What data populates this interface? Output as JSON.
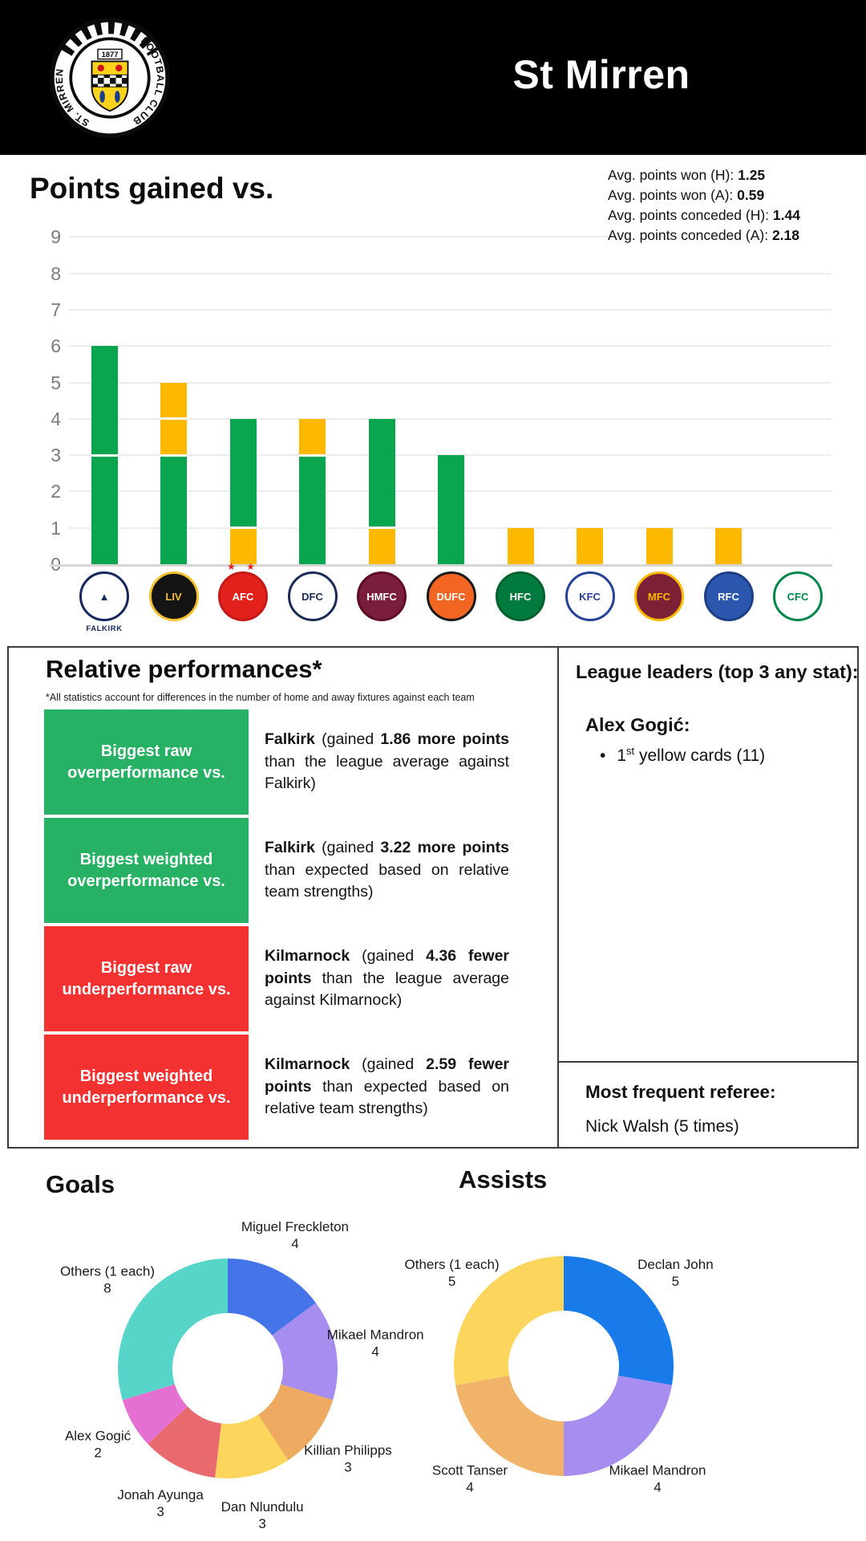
{
  "header": {
    "title": "St Mirren",
    "crest": {
      "year": "1877",
      "ring_text_left": "ST. MIRREN",
      "ring_text_right": "FOOTBALL CLUB"
    }
  },
  "points_section": {
    "title": "Points gained vs.",
    "avg_stats": [
      {
        "label": "Avg. points won (H): ",
        "value": "1.25"
      },
      {
        "label": "Avg. points won (A): ",
        "value": "0.59"
      },
      {
        "label": "Avg. points conceded (H): ",
        "value": "1.44"
      },
      {
        "label": "Avg. points conceded (A): ",
        "value": "2.18"
      }
    ]
  },
  "team_logos": [
    {
      "name": "Falkirk",
      "abbr": "▲",
      "bg": "#ffffff",
      "fg": "#15275c",
      "border": "#15275c",
      "caption": "FALKIRK"
    },
    {
      "name": "Livingston",
      "abbr": "LIV",
      "bg": "#141414",
      "fg": "#f2c230",
      "border": "#f2c230"
    },
    {
      "name": "Aberdeen",
      "abbr": "AFC",
      "bg": "#e2211c",
      "fg": "#ffffff",
      "border": "#c41a17",
      "stars": true
    },
    {
      "name": "Dundee",
      "abbr": "DFC",
      "bg": "#ffffff",
      "fg": "#1a2b57",
      "border": "#1a2b57"
    },
    {
      "name": "Hearts",
      "abbr": "HMFC",
      "bg": "#7b1e3d",
      "fg": "#ffffff",
      "border": "#5e0b23"
    },
    {
      "name": "Dundee United",
      "abbr": "DUFC",
      "bg": "#f26522",
      "fg": "#ffffff",
      "border": "#1a1a1a"
    },
    {
      "name": "Hibernian",
      "abbr": "HFC",
      "bg": "#007a3d",
      "fg": "#ffffff",
      "border": "#00612f"
    },
    {
      "name": "Kilmarnock",
      "abbr": "KFC",
      "bg": "#ffffff",
      "fg": "#27409a",
      "border": "#27409a"
    },
    {
      "name": "Motherwell",
      "abbr": "MFC",
      "bg": "#7c2035",
      "fg": "#fbba00",
      "border": "#fbba00"
    },
    {
      "name": "Rangers",
      "abbr": "RFC",
      "bg": "#2b57ae",
      "fg": "#ffffff",
      "border": "#1d3f87"
    },
    {
      "name": "Celtic",
      "abbr": "CFC",
      "bg": "#ffffff",
      "fg": "#018749",
      "border": "#018749"
    }
  ],
  "relative_performances": {
    "heading": "Relative performances*",
    "footnote": "*All statistics account for differences in the number of home and away fixtures against each team",
    "rows": [
      {
        "box_label": "Biggest raw overperformance vs.",
        "box_color": "#26b164",
        "desc_parts": [
          {
            "t": "Falkirk",
            "b": true
          },
          {
            "t": " (gained ",
            "b": false
          },
          {
            "t": "1.86 more points",
            "b": true
          },
          {
            "t": " than the league average against Falkirk)",
            "b": false
          }
        ]
      },
      {
        "box_label": "Biggest weighted overperformance vs.",
        "box_color": "#26b164",
        "desc_parts": [
          {
            "t": "Falkirk",
            "b": true
          },
          {
            "t": " (gained ",
            "b": false
          },
          {
            "t": "3.22 more points",
            "b": true
          },
          {
            "t": " than expected based on relative team strengths)",
            "b": false
          }
        ]
      },
      {
        "box_label": "Biggest raw underperformance vs.",
        "box_color": "#f23130",
        "desc_parts": [
          {
            "t": "Kilmarnock",
            "b": true
          },
          {
            "t": " (gained ",
            "b": false
          },
          {
            "t": "4.36 fewer points",
            "b": true
          },
          {
            "t": " than the league average against Kilmarnock)",
            "b": false
          }
        ]
      },
      {
        "box_label": "Biggest weighted underperformance vs.",
        "box_color": "#f23130",
        "desc_parts": [
          {
            "t": "Kilmarnock",
            "b": true
          },
          {
            "t": " (gained ",
            "b": false
          },
          {
            "t": "2.59 fewer points",
            "b": true
          },
          {
            "t": " than expected based on relative team strengths)",
            "b": false
          }
        ]
      }
    ]
  },
  "league_leaders": {
    "heading": "League leaders (top 3 any stat):",
    "player": "Alex Gogić:",
    "bullets": [
      {
        "bullet": "•",
        "num": "1",
        "sup": "st",
        "rest": " yellow cards (11)"
      }
    ]
  },
  "referee": {
    "heading": "Most frequent referee:",
    "value": "Nick Walsh (5 times)"
  },
  "goals_heading": "Goals",
  "assists_heading": "Assists",
  "chart_data": [
    {
      "id": "points_gained_vs",
      "type": "bar",
      "stacked": true,
      "title": "Points gained vs.",
      "categories": [
        "Falkirk",
        "Livingston",
        "Aberdeen",
        "Dundee",
        "Hearts",
        "Dundee United",
        "Hibernian",
        "Kilmarnock",
        "Motherwell",
        "Rangers",
        "Celtic"
      ],
      "totals": [
        6,
        5,
        4,
        4,
        4,
        3,
        1,
        1,
        1,
        1,
        0
      ],
      "segments": [
        [
          {
            "points": 3,
            "result": "win"
          },
          {
            "points": 3,
            "result": "win"
          }
        ],
        [
          {
            "points": 3,
            "result": "win"
          },
          {
            "points": 1,
            "result": "draw"
          },
          {
            "points": 1,
            "result": "draw"
          }
        ],
        [
          {
            "points": 1,
            "result": "draw"
          },
          {
            "points": 3,
            "result": "win"
          }
        ],
        [
          {
            "points": 3,
            "result": "win"
          },
          {
            "points": 1,
            "result": "draw"
          }
        ],
        [
          {
            "points": 1,
            "result": "draw"
          },
          {
            "points": 3,
            "result": "win"
          }
        ],
        [
          {
            "points": 3,
            "result": "win"
          }
        ],
        [
          {
            "points": 1,
            "result": "draw"
          }
        ],
        [
          {
            "points": 1,
            "result": "draw"
          }
        ],
        [
          {
            "points": 1,
            "result": "draw"
          }
        ],
        [
          {
            "points": 1,
            "result": "draw"
          }
        ],
        []
      ],
      "colors": {
        "win": "#0aa64f",
        "draw": "#fcb900"
      },
      "ylim": [
        0,
        9
      ],
      "y_ticks": [
        0,
        1,
        2,
        3,
        4,
        5,
        6,
        7,
        8,
        9
      ],
      "grid": true,
      "legend": "none"
    },
    {
      "id": "goals",
      "type": "pie",
      "donut": true,
      "title": "Goals",
      "labels": [
        "Miguel Freckleton",
        "Mikael Mandron",
        "Killian Philipps",
        "Dan Nlundulu",
        "Jonah Ayunga",
        "Alex Gogić",
        "Others (1 each)"
      ],
      "values": [
        4,
        4,
        3,
        3,
        3,
        2,
        8
      ],
      "colors": [
        "#4573e8",
        "#a88df1",
        "#eeaa61",
        "#fcd65c",
        "#e96a6e",
        "#e471d1",
        "#58d5c9"
      ],
      "start_angle": "top",
      "direction": "clockwise"
    },
    {
      "id": "assists",
      "type": "pie",
      "donut": true,
      "title": "Assists",
      "labels": [
        "Declan John",
        "Mikael Mandron",
        "Scott Tanser",
        "Others (1 each)"
      ],
      "values": [
        5,
        4,
        4,
        5
      ],
      "colors": [
        "#187be9",
        "#a88df1",
        "#f0b369",
        "#fcd65c"
      ],
      "start_angle": "top",
      "direction": "clockwise"
    }
  ]
}
